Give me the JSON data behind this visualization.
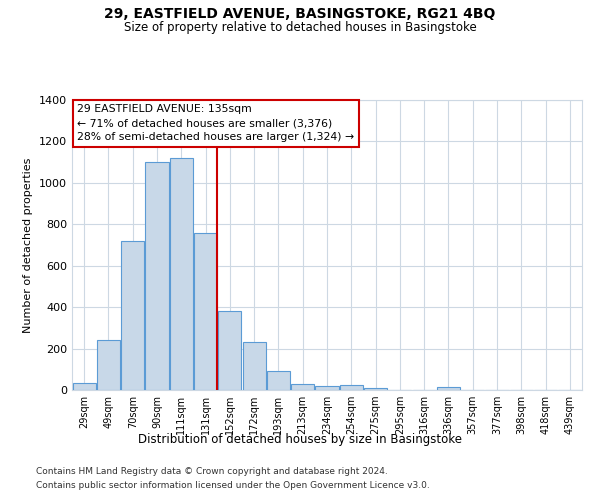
{
  "title1": "29, EASTFIELD AVENUE, BASINGSTOKE, RG21 4BQ",
  "title2": "Size of property relative to detached houses in Basingstoke",
  "xlabel": "Distribution of detached houses by size in Basingstoke",
  "ylabel": "Number of detached properties",
  "bar_labels": [
    "29sqm",
    "49sqm",
    "70sqm",
    "90sqm",
    "111sqm",
    "131sqm",
    "152sqm",
    "172sqm",
    "193sqm",
    "213sqm",
    "234sqm",
    "254sqm",
    "275sqm",
    "295sqm",
    "316sqm",
    "336sqm",
    "357sqm",
    "377sqm",
    "398sqm",
    "418sqm",
    "439sqm"
  ],
  "bar_values": [
    35,
    240,
    720,
    1100,
    1120,
    760,
    380,
    230,
    90,
    30,
    20,
    25,
    10,
    0,
    0,
    15,
    0,
    0,
    0,
    0,
    0
  ],
  "bar_color": "#c8d8e8",
  "bar_edge_color": "#5b9bd5",
  "vline_index": 5,
  "marker_label": "29 EASTFIELD AVENUE: 135sqm",
  "annotation_line1": "← 71% of detached houses are smaller (3,376)",
  "annotation_line2": "28% of semi-detached houses are larger (1,324) →",
  "annotation_box_color": "#ffffff",
  "annotation_box_edge": "#cc0000",
  "vline_color": "#cc0000",
  "ylim": [
    0,
    1400
  ],
  "yticks": [
    0,
    200,
    400,
    600,
    800,
    1000,
    1200,
    1400
  ],
  "footer1": "Contains HM Land Registry data © Crown copyright and database right 2024.",
  "footer2": "Contains public sector information licensed under the Open Government Licence v3.0.",
  "background_color": "#ffffff",
  "grid_color": "#cdd8e3"
}
